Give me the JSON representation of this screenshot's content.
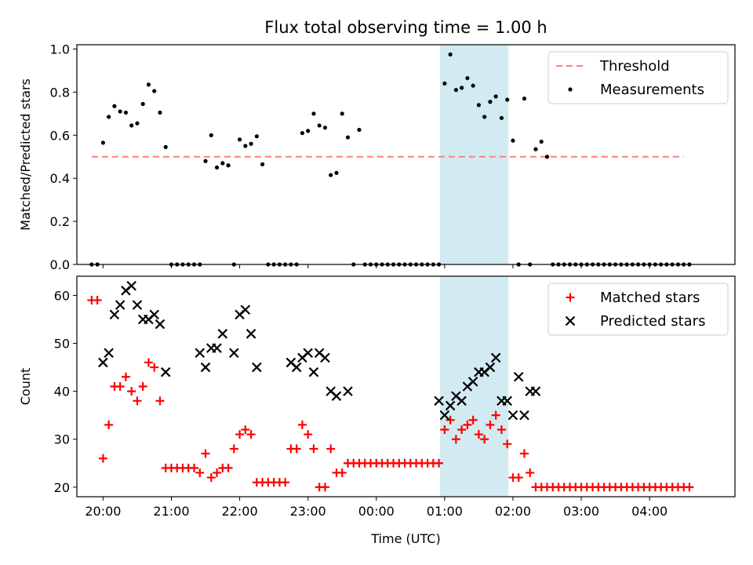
{
  "chart_data": [
    {
      "type": "scatter",
      "title": "Flux total observing time = 1.00 h",
      "ylabel": "Matched/Predicted stars",
      "xlabel": "",
      "xlim": [
        "19:37",
        "05:15"
      ],
      "ylim": [
        0,
        1.02
      ],
      "yticks": [
        "0.0",
        "0.2",
        "0.4",
        "0.6",
        "0.8",
        "1.0"
      ],
      "xticks": [
        "20:00",
        "21:00",
        "22:00",
        "23:00",
        "00:00",
        "01:00",
        "02:00",
        "03:00",
        "04:00"
      ],
      "shaded_span": [
        "00:56",
        "01:56"
      ],
      "threshold": {
        "name": "Threshold",
        "value": 0.5,
        "x_range": [
          "19:50",
          "04:30"
        ],
        "color": "#ff7f7f"
      },
      "legend": {
        "placement": "top-right",
        "entries": [
          "Threshold",
          "Measurements"
        ]
      },
      "series": [
        {
          "name": "Measurements",
          "color": "#000000",
          "x": [
            "19:50",
            "19:55",
            "20:00",
            "20:05",
            "20:10",
            "20:15",
            "20:20",
            "20:25",
            "20:30",
            "20:35",
            "20:40",
            "20:45",
            "20:50",
            "20:55",
            "21:00",
            "21:05",
            "21:10",
            "21:15",
            "21:20",
            "21:25",
            "21:30",
            "21:35",
            "21:40",
            "21:45",
            "21:50",
            "21:55",
            "22:00",
            "22:05",
            "22:10",
            "22:15",
            "22:20",
            "22:25",
            "22:30",
            "22:35",
            "22:40",
            "22:45",
            "22:50",
            "22:55",
            "23:00",
            "23:05",
            "23:10",
            "23:15",
            "23:20",
            "23:25",
            "23:30",
            "23:35",
            "23:40",
            "23:45",
            "23:50",
            "23:55",
            "00:00",
            "00:05",
            "00:10",
            "00:15",
            "00:20",
            "00:25",
            "00:30",
            "00:35",
            "00:40",
            "00:45",
            "00:50",
            "00:55",
            "01:00",
            "01:05",
            "01:10",
            "01:15",
            "01:20",
            "01:25",
            "01:30",
            "01:35",
            "01:40",
            "01:45",
            "01:50",
            "01:55",
            "02:00",
            "02:05",
            "02:10",
            "02:15",
            "02:20",
            "02:25",
            "02:30",
            "02:35",
            "02:40",
            "02:45",
            "02:50",
            "02:55",
            "03:00",
            "03:05",
            "03:10",
            "03:15",
            "03:20",
            "03:25",
            "03:30",
            "03:35",
            "03:40",
            "03:45",
            "03:50",
            "03:55",
            "04:00",
            "04:05",
            "04:10",
            "04:15",
            "04:20",
            "04:25",
            "04:30",
            "04:35"
          ],
          "y": [
            0,
            0,
            0.565,
            0.685,
            0.735,
            0.71,
            0.705,
            0.645,
            0.655,
            0.745,
            0.835,
            0.805,
            0.705,
            0.545,
            0,
            0,
            0,
            0,
            0,
            0,
            0.48,
            0.6,
            0.45,
            0.47,
            0.46,
            0,
            0.58,
            0.55,
            0.56,
            0.595,
            0.465,
            0,
            0,
            0,
            0,
            0,
            0,
            0.61,
            0.62,
            0.7,
            0.645,
            0.635,
            0.415,
            0.425,
            0.7,
            0.59,
            0,
            0.625,
            0,
            0,
            0,
            0,
            0,
            0,
            0,
            0,
            0,
            0,
            0,
            0,
            0,
            0,
            0.84,
            0.975,
            0.81,
            0.82,
            0.865,
            0.83,
            0.74,
            0.685,
            0.755,
            0.78,
            0.68,
            0.765,
            0.575,
            0,
            0.77,
            0,
            0.535,
            0.57,
            0.5,
            0,
            0,
            0,
            0,
            0,
            0,
            0,
            0,
            0,
            0,
            0,
            0,
            0,
            0,
            0,
            0,
            0,
            0,
            0,
            0,
            0,
            0,
            0,
            0,
            0
          ]
        }
      ]
    },
    {
      "type": "scatter",
      "title": "",
      "ylabel": "Count",
      "xlabel": "Time (UTC)",
      "xlim": [
        "19:37",
        "05:15"
      ],
      "ylim": [
        18,
        64
      ],
      "yticks": [
        "20",
        "30",
        "40",
        "50",
        "60"
      ],
      "xticks": [
        "20:00",
        "21:00",
        "22:00",
        "23:00",
        "00:00",
        "01:00",
        "02:00",
        "03:00",
        "04:00"
      ],
      "shaded_span": [
        "00:56",
        "01:56"
      ],
      "legend": {
        "placement": "top-right",
        "entries": [
          "Matched stars",
          "Predicted stars"
        ]
      },
      "series": [
        {
          "name": "Matched stars",
          "marker": "+",
          "color": "#ff0000",
          "x": [
            "19:50",
            "19:55",
            "20:00",
            "20:05",
            "20:10",
            "20:15",
            "20:20",
            "20:25",
            "20:30",
            "20:35",
            "20:40",
            "20:45",
            "20:50",
            "20:55",
            "21:00",
            "21:05",
            "21:10",
            "21:15",
            "21:20",
            "21:25",
            "21:30",
            "21:35",
            "21:40",
            "21:45",
            "21:50",
            "21:55",
            "22:00",
            "22:05",
            "22:10",
            "22:15",
            "22:20",
            "22:25",
            "22:30",
            "22:35",
            "22:40",
            "22:45",
            "22:50",
            "22:55",
            "23:00",
            "23:05",
            "23:10",
            "23:15",
            "23:20",
            "23:25",
            "23:30",
            "23:35",
            "23:40",
            "23:45",
            "23:50",
            "23:55",
            "00:00",
            "00:05",
            "00:10",
            "00:15",
            "00:20",
            "00:25",
            "00:30",
            "00:35",
            "00:40",
            "00:45",
            "00:50",
            "00:55",
            "01:00",
            "01:05",
            "01:10",
            "01:15",
            "01:20",
            "01:25",
            "01:30",
            "01:35",
            "01:40",
            "01:45",
            "01:50",
            "01:55",
            "02:00",
            "02:05",
            "02:10",
            "02:15",
            "02:20",
            "02:25",
            "02:30",
            "02:35",
            "02:40",
            "02:45",
            "02:50",
            "02:55",
            "03:00",
            "03:05",
            "03:10",
            "03:15",
            "03:20",
            "03:25",
            "03:30",
            "03:35",
            "03:40",
            "03:45",
            "03:50",
            "03:55",
            "04:00",
            "04:05",
            "04:10",
            "04:15",
            "04:20",
            "04:25",
            "04:30",
            "04:35"
          ],
          "y": [
            59,
            59,
            26,
            33,
            41,
            41,
            43,
            40,
            38,
            41,
            46,
            45,
            38,
            24,
            24,
            24,
            24,
            24,
            24,
            23,
            27,
            22,
            23,
            24,
            24,
            28,
            31,
            32,
            31,
            21,
            21,
            21,
            21,
            21,
            21,
            28,
            28,
            33,
            31,
            28,
            20,
            20,
            28,
            23,
            23,
            25,
            25,
            25,
            25,
            25,
            25,
            25,
            25,
            25,
            25,
            25,
            25,
            25,
            25,
            25,
            25,
            25,
            32,
            34,
            30,
            32,
            33,
            34,
            31,
            30,
            33,
            35,
            32,
            29,
            22,
            22,
            27,
            23,
            20,
            20,
            20,
            20,
            20,
            20,
            20,
            20,
            20,
            20,
            20,
            20,
            20,
            20,
            20,
            20,
            20,
            20,
            20,
            20,
            20,
            20,
            20,
            20,
            20,
            20,
            20,
            20
          ]
        },
        {
          "name": "Predicted stars",
          "marker": "x",
          "color": "#000000",
          "x": [
            "20:00",
            "20:05",
            "20:10",
            "20:15",
            "20:20",
            "20:25",
            "20:30",
            "20:35",
            "20:40",
            "20:45",
            "20:50",
            "20:55",
            "21:25",
            "21:30",
            "21:35",
            "21:40",
            "21:45",
            "21:55",
            "22:00",
            "22:05",
            "22:10",
            "22:15",
            "22:45",
            "22:50",
            "22:55",
            "23:00",
            "23:05",
            "23:10",
            "23:15",
            "23:20",
            "23:25",
            "23:35",
            "00:55",
            "01:00",
            "01:05",
            "01:10",
            "01:15",
            "01:20",
            "01:25",
            "01:30",
            "01:35",
            "01:40",
            "01:45",
            "01:50",
            "01:55",
            "02:00",
            "02:05",
            "02:10",
            "02:15",
            "02:20"
          ],
          "y": [
            46,
            48,
            56,
            58,
            61,
            62,
            58,
            55,
            55,
            56,
            54,
            44,
            48,
            45,
            49,
            49,
            52,
            48,
            56,
            57,
            52,
            45,
            46,
            45,
            47,
            48,
            44,
            48,
            47,
            40,
            39,
            40,
            38,
            35,
            37,
            39,
            38,
            41,
            42,
            44,
            44,
            45,
            47,
            38,
            38,
            35,
            43,
            35,
            40,
            40
          ]
        }
      ]
    }
  ]
}
